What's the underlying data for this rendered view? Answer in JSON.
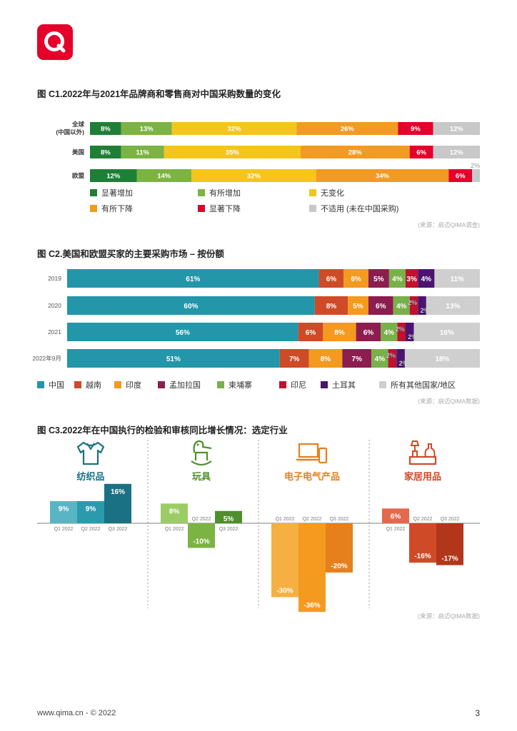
{
  "logo": {
    "brand_color": "#e4002b",
    "icon": "qima-q-logo"
  },
  "colors": {
    "dark_green": "#1f7f36",
    "light_green": "#7cb342",
    "yellow": "#f4c51b",
    "orange": "#f29a21",
    "red": "#e4002b",
    "grey": "#c8c8c8",
    "teal": "#2396a9",
    "rust": "#cf4a26",
    "amber": "#f39a1f",
    "maroon": "#8c1d4f",
    "olive": "#78b14a",
    "darkred": "#c0112e",
    "purple": "#4a1470",
    "lightgrey": "#cfcfcf"
  },
  "c1": {
    "title": "图 C1.2022年与2021年品牌商和零售商对中国采购数量的变化",
    "source": "(来源：启迈QIMA调查)",
    "chart_data": {
      "type": "bar",
      "orientation": "horizontal-stacked-100",
      "categories": [
        [
          "全球",
          "(中国以外)"
        ],
        [
          "美国"
        ],
        [
          "欧盟"
        ]
      ],
      "series": [
        {
          "name": "显著增加",
          "color": "#1f7f36",
          "values": [
            8,
            8,
            12
          ]
        },
        {
          "name": "有所增加",
          "color": "#7cb342",
          "values": [
            13,
            11,
            14
          ]
        },
        {
          "name": "无变化",
          "color": "#f4c51b",
          "values": [
            32,
            35,
            32
          ]
        },
        {
          "name": "有所下降",
          "color": "#f29a21",
          "values": [
            26,
            28,
            34
          ]
        },
        {
          "name": "显著下降",
          "color": "#e4002b",
          "values": [
            9,
            6,
            6
          ]
        },
        {
          "name": "不适用 (未在中国采购)",
          "color": "#c8c8c8",
          "values": [
            12,
            12,
            2
          ]
        }
      ],
      "labels": [
        [
          "8%",
          "13%",
          "32%",
          "26%",
          "9%",
          "12%"
        ],
        [
          "8%",
          "11%",
          "35%",
          "28%",
          "6%",
          "12%"
        ],
        [
          "12%",
          "14%",
          "32%",
          "34%",
          "6%",
          "2%"
        ]
      ]
    }
  },
  "c2": {
    "title": "图 C2.美国和欧盟买家的主要采购市场 – 按份额",
    "source": "(来源：启迈QIMA数据)",
    "chart_data": {
      "type": "bar",
      "orientation": "horizontal-stacked-100",
      "categories": [
        "2019",
        "2020",
        "2021",
        "2022年9月"
      ],
      "series": [
        {
          "name": "中国",
          "color": "#2396a9",
          "values": [
            61,
            60,
            56,
            51
          ]
        },
        {
          "name": "越南",
          "color": "#cf4a26",
          "values": [
            6,
            8,
            6,
            7
          ]
        },
        {
          "name": "印度",
          "color": "#f39a1f",
          "values": [
            6,
            5,
            8,
            8
          ]
        },
        {
          "name": "孟加拉国",
          "color": "#8c1d4f",
          "values": [
            5,
            6,
            6,
            7
          ]
        },
        {
          "name": "柬埔寨",
          "color": "#78b14a",
          "values": [
            4,
            4,
            4,
            4
          ]
        },
        {
          "name": "印尼",
          "color": "#c0112e",
          "values": [
            3,
            2,
            2,
            2
          ]
        },
        {
          "name": "土耳其",
          "color": "#4a1470",
          "values": [
            4,
            2,
            2,
            2
          ]
        },
        {
          "name": "所有其他国家/地区",
          "color": "#cfcfcf",
          "values": [
            11,
            13,
            16,
            18
          ]
        }
      ],
      "labels": [
        [
          "61%",
          "6%",
          "6%",
          "5%",
          "4%",
          "3%",
          "4%",
          "11%"
        ],
        [
          "60%",
          "8%",
          "5%",
          "6%",
          "4%",
          "2%",
          "2%",
          "13%"
        ],
        [
          "56%",
          "6%",
          "8%",
          "6%",
          "4%",
          "2%",
          "2%",
          "16%"
        ],
        [
          "51%",
          "7%",
          "8%",
          "7%",
          "4%",
          "2%",
          "2%",
          "18%"
        ]
      ]
    }
  },
  "c3": {
    "title": "图 C3.2022年在中国执行的检验和审核同比增长情况：选定行业",
    "source": "(来源：启迈QIMA数据)",
    "chart_data": {
      "type": "bar",
      "groups": [
        {
          "name": "纺织品",
          "icon": "shirt-icon",
          "x": [
            "Q1 2022",
            "Q2 2022",
            "Q3 2022"
          ],
          "values": [
            9,
            9,
            16
          ],
          "labels": [
            "9%",
            "9%",
            "16%"
          ],
          "colors": [
            "#59b5c4",
            "#2c9aad",
            "#1a7183"
          ]
        },
        {
          "name": "玩具",
          "icon": "rocking-horse-icon",
          "x": [
            "Q1 2022",
            "Q2 2022",
            "Q3 2022"
          ],
          "values": [
            8,
            -10,
            5
          ],
          "labels": [
            "8%",
            "-10%",
            "5%"
          ],
          "colors": [
            "#9ccc65",
            "#7cb342",
            "#4f8f2b"
          ]
        },
        {
          "name": "电子电气产品",
          "icon": "laptop-phone-icon",
          "x": [
            "Q1 2022",
            "Q2 2022",
            "Q3 2022"
          ],
          "values": [
            -30,
            -36,
            -20
          ],
          "labels": [
            "-30%",
            "-36%",
            "-20%"
          ],
          "colors": [
            "#f5b041",
            "#f39a1f",
            "#e5801c"
          ]
        },
        {
          "name": "家居用品",
          "icon": "home-goods-icon",
          "x": [
            "Q1 2022",
            "Q2 2022",
            "Q3 2022"
          ],
          "values": [
            6,
            -16,
            -17
          ],
          "labels": [
            "6%",
            "-16%",
            "-17%"
          ],
          "colors": [
            "#e16a4d",
            "#cf4a26",
            "#b2361a"
          ]
        }
      ]
    }
  },
  "footer": {
    "url": "www.qima.cn - © 2022",
    "page": "3"
  }
}
